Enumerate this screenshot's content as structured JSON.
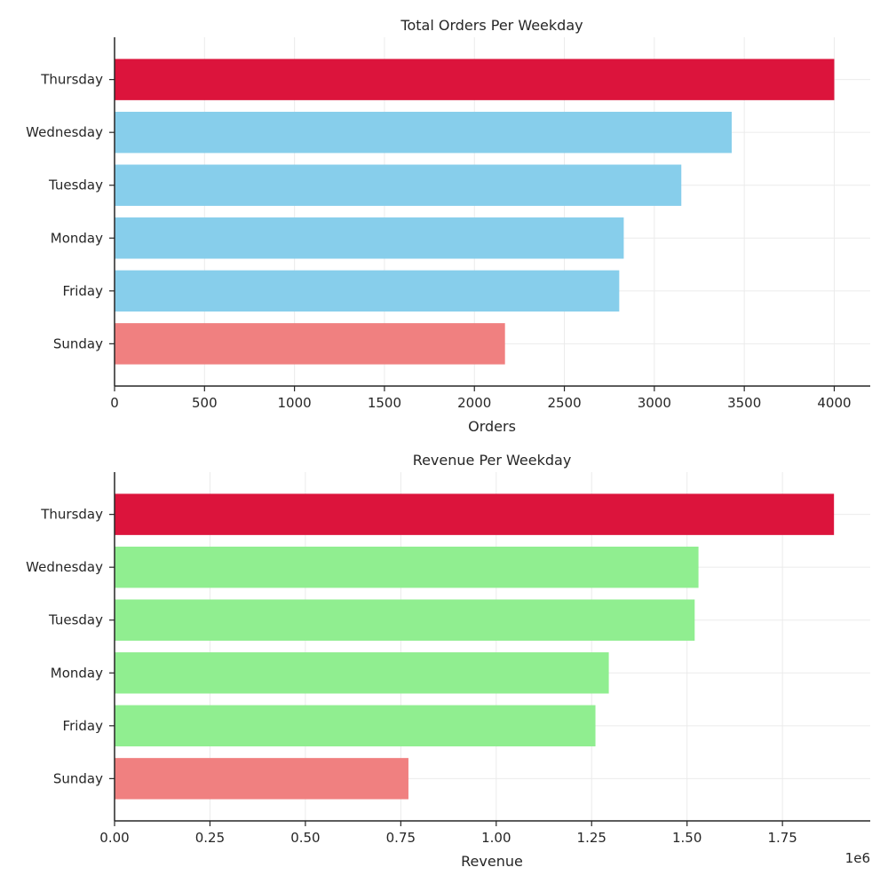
{
  "chart_data": [
    {
      "type": "bar",
      "orientation": "horizontal",
      "title": "Total Orders Per Weekday",
      "xlabel": "Orders",
      "ylabel": "",
      "categories": [
        "Sunday",
        "Friday",
        "Monday",
        "Tuesday",
        "Wednesday",
        "Thursday"
      ],
      "values": [
        2170,
        2805,
        2830,
        3150,
        3430,
        4000
      ],
      "colors": [
        "#f08080",
        "#87ceeb",
        "#87ceeb",
        "#87ceeb",
        "#87ceeb",
        "#dc143c"
      ],
      "xlim": [
        0,
        4200
      ],
      "xticks": [
        0,
        500,
        1000,
        1500,
        2000,
        2500,
        3000,
        3500,
        4000
      ],
      "xtick_labels": [
        "0",
        "500",
        "1000",
        "1500",
        "2000",
        "2500",
        "3000",
        "3500",
        "4000"
      ],
      "offset_label": "",
      "grid": true,
      "legend": "none"
    },
    {
      "type": "bar",
      "orientation": "horizontal",
      "title": "Revenue Per Weekday",
      "xlabel": "Revenue",
      "ylabel": "",
      "categories": [
        "Sunday",
        "Friday",
        "Monday",
        "Tuesday",
        "Wednesday",
        "Thursday"
      ],
      "values": [
        770000,
        1260000,
        1295000,
        1520000,
        1530000,
        1885000
      ],
      "colors": [
        "#f08080",
        "#90ee90",
        "#90ee90",
        "#90ee90",
        "#90ee90",
        "#dc143c"
      ],
      "xlim": [
        0,
        1980000
      ],
      "xticks": [
        0,
        250000,
        500000,
        750000,
        1000000,
        1250000,
        1500000,
        1750000
      ],
      "xtick_labels": [
        "0.00",
        "0.25",
        "0.50",
        "0.75",
        "1.00",
        "1.25",
        "1.50",
        "1.75"
      ],
      "offset_label": "1e6",
      "grid": true,
      "legend": "none"
    }
  ]
}
